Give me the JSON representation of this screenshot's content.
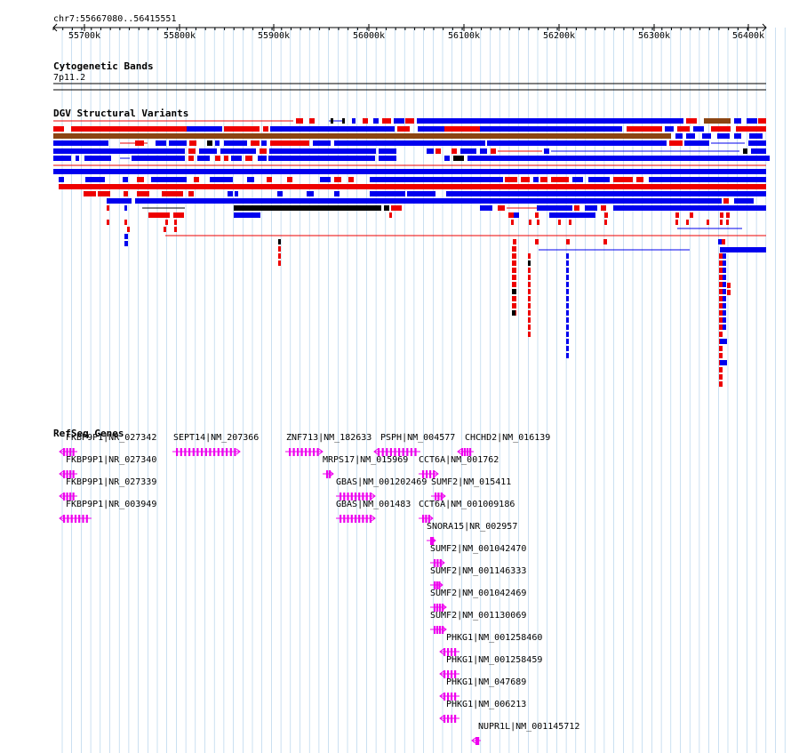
{
  "locus": "chr7:55667080..56415551",
  "ruler_ticks": [
    "55700k",
    "55800k",
    "55900k",
    "56000k",
    "56100k",
    "56200k",
    "56300k",
    "56400k"
  ],
  "tracks": {
    "cytoband": {
      "title": "Cytogenetic Bands",
      "band": "7p11.2"
    },
    "dgv": {
      "title": "DGV Structural Variants"
    },
    "refseq": {
      "title": "RefSeq Genes"
    }
  },
  "genes": [
    "FKBP9P1|NR_027342",
    "FKBP9P1|NR_027340",
    "FKBP9P1|NR_027339",
    "FKBP9P1|NR_003949",
    "SEPT14|NM_207366",
    "ZNF713|NM_182633",
    "PSPH|NM_004577",
    "CHCHD2|NM_016139",
    "MRPS17|NM_015969",
    "CCT6A|NM_001762",
    "GBAS|NM_001202469",
    "SUMF2|NM_015411",
    "GBAS|NM_001483",
    "CCT6A|NM_001009186",
    "SNORA15|NR_002957",
    "SUMF2|NM_001042470",
    "SUMF2|NM_001146333",
    "SUMF2|NM_001042469",
    "SUMF2|NM_001130069",
    "PHKG1|NM_001258460",
    "PHKG1|NM_001258459",
    "PHKG1|NM_047689",
    "PHKG1|NM_006213",
    "NUPR1L|NM_001145712"
  ],
  "colors": {
    "gain": "#0000ee",
    "loss": "#ee0000",
    "complex": "#8b4513",
    "inversion": "#000000",
    "gene": "#ee00ee",
    "grid": "#a8cce8"
  }
}
